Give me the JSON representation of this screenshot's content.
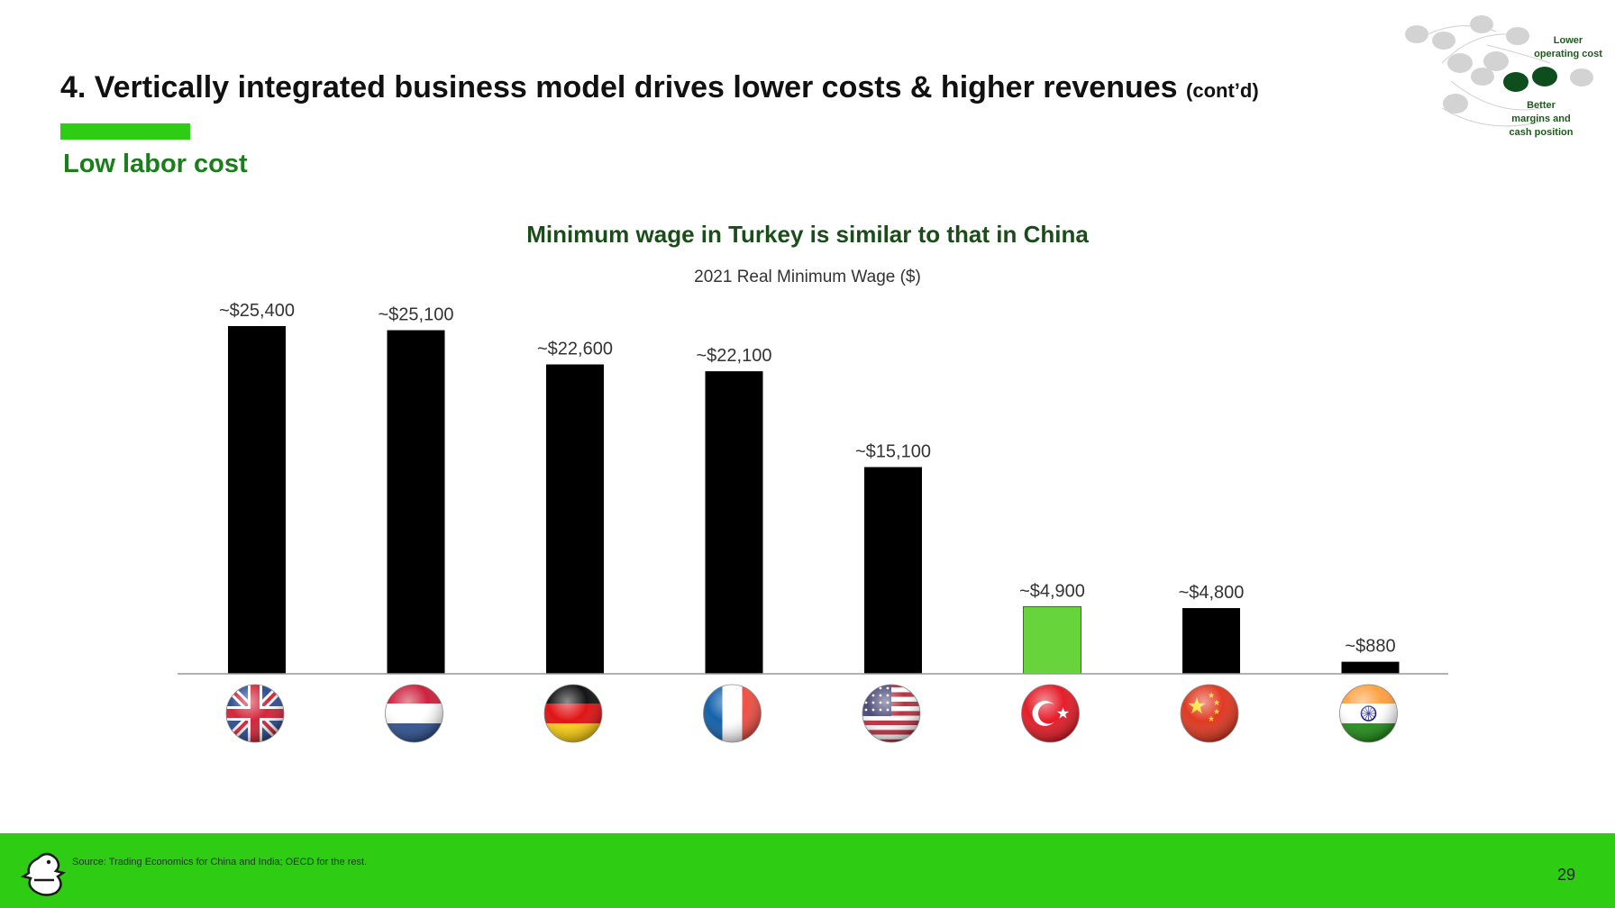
{
  "header": {
    "title": "4. Vertically integrated business model drives lower costs & higher revenues",
    "title_suffix": "(cont’d)",
    "subheading": "Low labor cost"
  },
  "corner_graphic": {
    "label_top": [
      "Lower",
      "operating cost"
    ],
    "label_bottom": [
      "Better",
      "margins and",
      "cash position"
    ]
  },
  "chart_data": {
    "type": "bar",
    "title": "Minimum wage in Turkey is similar to that in China",
    "subtitle": "2021 Real Minimum Wage ($)",
    "categories": [
      "United Kingdom",
      "Netherlands",
      "Germany",
      "France",
      "United States",
      "Turkey",
      "China",
      "India"
    ],
    "values": [
      25400,
      25100,
      22600,
      22100,
      15100,
      4900,
      4800,
      880
    ],
    "data_labels": [
      "~$25,400",
      "~$25,100",
      "~$22,600",
      "~$22,100",
      "~$15,100",
      "~$4,900",
      "~$4,800",
      "~$880"
    ],
    "flag_icons": [
      "uk-flag-icon",
      "netherlands-flag-icon",
      "germany-flag-icon",
      "france-flag-icon",
      "usa-flag-icon",
      "turkey-flag-icon",
      "china-flag-icon",
      "india-flag-icon"
    ],
    "highlight_index": 5,
    "colors": {
      "bar": "#000000",
      "highlight": "#66d43a",
      "title": "#1a4d1a"
    },
    "ylim": [
      0,
      25400
    ],
    "grid": false,
    "legend": "none"
  },
  "footer": {
    "source": "Source: Trading Economics for China and India; OECD for the rest.",
    "page_number": "29",
    "logo_icon": "duck-logo-icon",
    "color": "#2ecc12"
  }
}
